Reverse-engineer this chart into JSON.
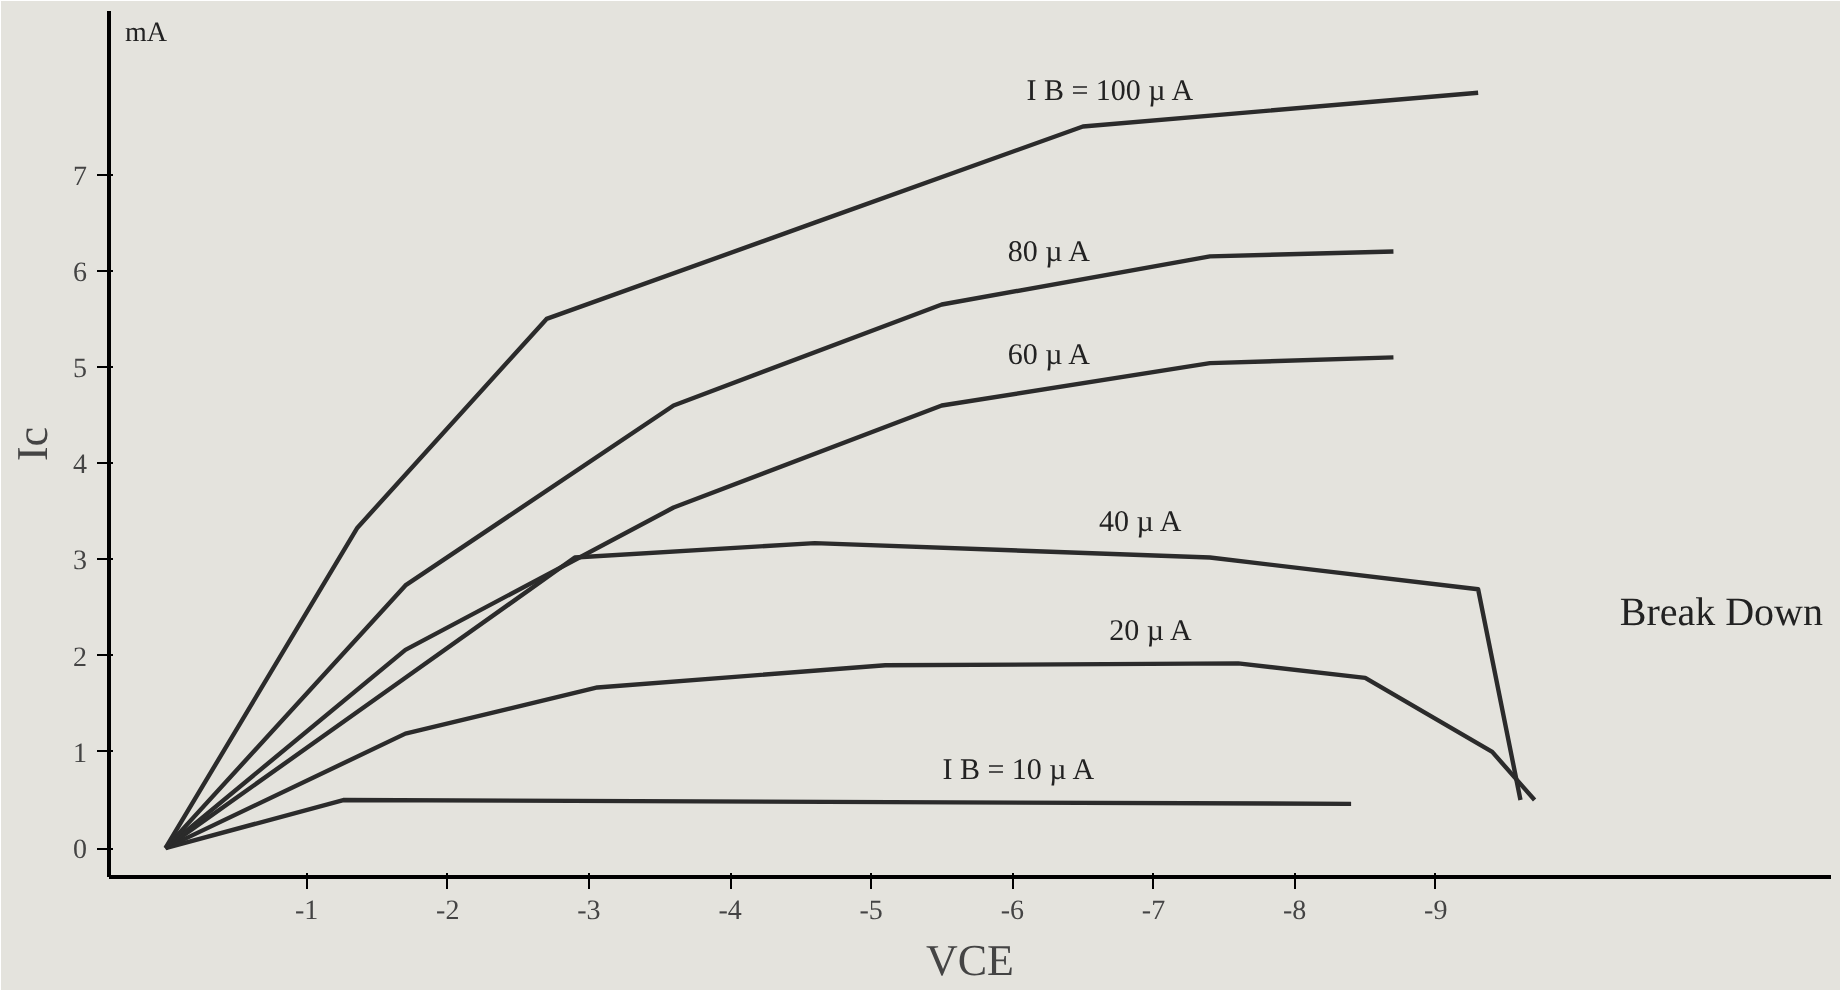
{
  "chart_data": {
    "type": "line",
    "xlabel": "VCE",
    "ylabel": "Ic",
    "xlim": [
      0.4,
      -11.8
    ],
    "ylim": [
      -0.3,
      8.7
    ],
    "xticks": [
      -1,
      -2,
      -3,
      -4,
      -5,
      -6,
      -7,
      -8,
      -9
    ],
    "yticks": [
      0,
      1,
      2,
      3,
      4,
      5,
      6,
      7
    ],
    "grid": false,
    "marker": "none",
    "line_style": "solid",
    "series": [
      {
        "name": "I B = 10 µ A",
        "color": "#2b2b2b",
        "x": [
          0,
          -1.26,
          -8.4
        ],
        "values": [
          0,
          0.5,
          0.46
        ]
      },
      {
        "name": "20 µ A",
        "color": "#2b2b2b",
        "x": [
          0,
          -1.7,
          -3.06,
          -5.1,
          -7.6,
          -8.5,
          -9.4,
          -9.7
        ],
        "values": [
          0,
          1.19,
          1.67,
          1.9,
          1.92,
          1.77,
          1.0,
          0.5
        ]
      },
      {
        "name": "40 µ A",
        "color": "#2b2b2b",
        "x": [
          0,
          -1.7,
          -2.9,
          -4.6,
          -7.4,
          -9.3,
          -9.6
        ],
        "values": [
          0,
          1.77,
          3.02,
          3.17,
          3.02,
          2.69,
          0.5
        ]
      },
      {
        "name": "60 µ A",
        "color": "#2b2b2b",
        "x": [
          0,
          -1.7,
          -3.6,
          -5.5,
          -7.4,
          -8.7
        ],
        "values": [
          0,
          2.06,
          3.54,
          4.6,
          5.04,
          5.1
        ]
      },
      {
        "name": "80 µ A",
        "color": "#2b2b2b",
        "x": [
          0,
          -1.7,
          -3.6,
          -5.5,
          -7.4,
          -8.7
        ],
        "values": [
          0,
          2.73,
          4.6,
          5.65,
          6.15,
          6.2
        ]
      },
      {
        "name": "I B = 100 µ A",
        "color": "#2b2b2b",
        "x": [
          0,
          -1.36,
          -2.7,
          -4.6,
          -6.5,
          -9.3
        ],
        "values": [
          0,
          3.33,
          5.5,
          6.5,
          7.5,
          7.85
        ]
      }
    ],
    "annotations": [
      "mA",
      "Break Down"
    ]
  }
}
